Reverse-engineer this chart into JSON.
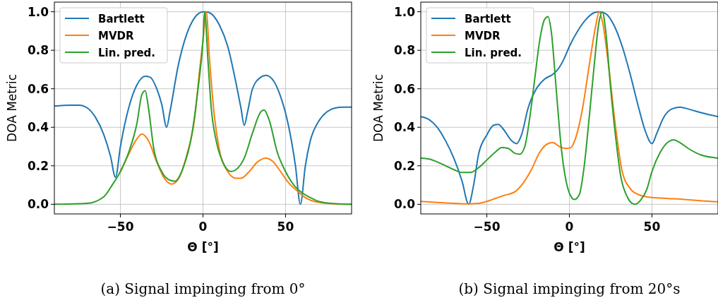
{
  "chart_data": [
    {
      "type": "line",
      "xlabel": "Θ [°]",
      "ylabel": "DOA Metric",
      "annotations": [
        "(a) Signal impinging from 0°"
      ],
      "xlim": [
        -90,
        90
      ],
      "ylim": [
        -0.05,
        1.05
      ],
      "xticks": [
        -50,
        0,
        50
      ],
      "yticks": [
        {
          "value": 0,
          "label": "0.0"
        },
        {
          "value": 0.2,
          "label": "0.2"
        },
        {
          "value": 0.4,
          "label": "0.4"
        },
        {
          "value": 0.6,
          "label": "0.6"
        },
        {
          "value": 0.8,
          "label": "0.8"
        },
        {
          "value": 1,
          "label": "1.0"
        }
      ],
      "grid": true,
      "legend": "top left",
      "series": [
        {
          "name": "Bartlett",
          "color": "#1f77b4",
          "x": [
            -90,
            -80,
            -75,
            -70,
            -65,
            -60,
            -56,
            -53,
            -50,
            -45,
            -40,
            -35,
            -32,
            -28,
            -25,
            -22,
            -20,
            -15,
            -10,
            -5,
            0,
            2,
            5,
            10,
            15,
            20,
            23,
            25,
            27,
            30,
            35,
            38,
            42,
            47,
            52,
            56,
            59,
            62,
            65,
            70,
            75,
            80,
            85,
            90
          ],
          "values": [
            0.51,
            0.515,
            0.515,
            0.5,
            0.45,
            0.36,
            0.25,
            0.14,
            0.3,
            0.5,
            0.62,
            0.665,
            0.66,
            0.6,
            0.52,
            0.4,
            0.48,
            0.72,
            0.88,
            0.97,
            1.0,
            1.0,
            0.99,
            0.93,
            0.82,
            0.63,
            0.5,
            0.41,
            0.48,
            0.6,
            0.66,
            0.67,
            0.65,
            0.56,
            0.4,
            0.2,
            0.0,
            0.2,
            0.33,
            0.43,
            0.48,
            0.5,
            0.505,
            0.505
          ]
        },
        {
          "name": "MVDR",
          "color": "#ff7f0e",
          "x": [
            -50,
            -45,
            -40,
            -37,
            -33,
            -28,
            -23,
            -19,
            -15,
            -10,
            -5,
            -2,
            0,
            2,
            4,
            7,
            10,
            15,
            20,
            23,
            28,
            33,
            38,
            42,
            47,
            52,
            57,
            62,
            70,
            80,
            90
          ],
          "values": [
            0.17,
            0.26,
            0.34,
            0.365,
            0.33,
            0.22,
            0.13,
            0.105,
            0.13,
            0.25,
            0.45,
            0.7,
            0.85,
            1.0,
            0.75,
            0.45,
            0.28,
            0.17,
            0.135,
            0.135,
            0.17,
            0.22,
            0.24,
            0.225,
            0.17,
            0.11,
            0.07,
            0.035,
            0.01,
            0.002,
            0
          ]
        },
        {
          "name": "Lin. pred.",
          "color": "#2ca02c",
          "x": [
            -90,
            -70,
            -60,
            -55,
            -50,
            -45,
            -40,
            -37,
            -35,
            -33,
            -30,
            -25,
            -20,
            -17,
            -12,
            -7,
            -3,
            0,
            1,
            3,
            5,
            8,
            12,
            17,
            20,
            25,
            30,
            35,
            37,
            40,
            45,
            50,
            55,
            60,
            65,
            70,
            80,
            90
          ],
          "values": [
            0,
            0.005,
            0.04,
            0.1,
            0.17,
            0.27,
            0.42,
            0.57,
            0.59,
            0.5,
            0.3,
            0.17,
            0.125,
            0.12,
            0.19,
            0.35,
            0.6,
            0.85,
            1.0,
            0.75,
            0.5,
            0.33,
            0.22,
            0.17,
            0.18,
            0.24,
            0.37,
            0.48,
            0.49,
            0.44,
            0.27,
            0.17,
            0.1,
            0.06,
            0.035,
            0.015,
            0.003,
            0
          ]
        }
      ]
    },
    {
      "type": "line",
      "xlabel": "Θ [°]",
      "ylabel": "DOA Metric",
      "annotations": [
        "(b) Signal impinging from 20°s"
      ],
      "xlim": [
        -90,
        90
      ],
      "ylim": [
        -0.05,
        1.05
      ],
      "xticks": [
        -50,
        0,
        50
      ],
      "yticks": [
        {
          "value": 0,
          "label": "0.0"
        },
        {
          "value": 0.2,
          "label": "0.2"
        },
        {
          "value": 0.4,
          "label": "0.4"
        },
        {
          "value": 0.6,
          "label": "0.6"
        },
        {
          "value": 0.8,
          "label": "0.8"
        },
        {
          "value": 1,
          "label": "1.0"
        }
      ],
      "grid": true,
      "legend": "top left",
      "series": [
        {
          "name": "Bartlett",
          "color": "#1f77b4",
          "x": [
            -90,
            -85,
            -80,
            -75,
            -70,
            -65,
            -61,
            -58,
            -55,
            -50,
            -46,
            -43,
            -40,
            -35,
            -32,
            -29,
            -25,
            -20,
            -15,
            -10,
            -7,
            -3,
            0,
            5,
            10,
            15,
            18,
            22,
            27,
            32,
            37,
            42,
            46,
            50,
            53,
            57,
            62,
            67,
            72,
            80,
            90
          ],
          "values": [
            0.455,
            0.44,
            0.4,
            0.33,
            0.24,
            0.12,
            0.0,
            0.1,
            0.26,
            0.36,
            0.41,
            0.415,
            0.39,
            0.33,
            0.315,
            0.36,
            0.5,
            0.6,
            0.65,
            0.675,
            0.7,
            0.76,
            0.82,
            0.9,
            0.96,
            0.995,
            1.0,
            0.99,
            0.93,
            0.82,
            0.67,
            0.5,
            0.38,
            0.315,
            0.37,
            0.45,
            0.495,
            0.505,
            0.495,
            0.475,
            0.455
          ]
        },
        {
          "name": "MVDR",
          "color": "#ff7f0e",
          "x": [
            -90,
            -80,
            -70,
            -62,
            -55,
            -50,
            -45,
            -40,
            -33,
            -28,
            -23,
            -18,
            -13,
            -10,
            -6,
            -2,
            1,
            4,
            8,
            12,
            16,
            18,
            20,
            24,
            28,
            32,
            37,
            42,
            50,
            60,
            70,
            80,
            90
          ],
          "values": [
            0.015,
            0.01,
            0.005,
            0.002,
            0.005,
            0.015,
            0.03,
            0.045,
            0.065,
            0.11,
            0.18,
            0.27,
            0.315,
            0.32,
            0.3,
            0.29,
            0.295,
            0.35,
            0.5,
            0.72,
            0.93,
            1.0,
            0.95,
            0.7,
            0.4,
            0.17,
            0.08,
            0.05,
            0.035,
            0.03,
            0.025,
            0.018,
            0.013
          ]
        },
        {
          "name": "Lin. pred.",
          "color": "#2ca02c",
          "x": [
            -90,
            -85,
            -80,
            -75,
            -70,
            -65,
            -60,
            -55,
            -50,
            -45,
            -41,
            -37,
            -33,
            -30,
            -27,
            -24,
            -21,
            -18,
            -15,
            -13,
            -11,
            -8,
            -5,
            -2,
            1,
            3,
            6,
            9,
            12,
            15,
            18,
            20,
            22,
            25,
            28,
            31,
            35,
            38,
            40,
            43,
            47,
            50,
            55,
            60,
            63,
            67,
            72,
            80,
            90
          ],
          "values": [
            0.24,
            0.235,
            0.22,
            0.2,
            0.18,
            0.165,
            0.165,
            0.19,
            0.23,
            0.27,
            0.295,
            0.29,
            0.265,
            0.26,
            0.3,
            0.45,
            0.65,
            0.85,
            0.96,
            0.975,
            0.9,
            0.6,
            0.3,
            0.12,
            0.04,
            0.025,
            0.05,
            0.2,
            0.45,
            0.72,
            0.95,
            1.0,
            0.9,
            0.6,
            0.35,
            0.15,
            0.04,
            0.005,
            0.0,
            0.02,
            0.08,
            0.17,
            0.27,
            0.325,
            0.335,
            0.32,
            0.29,
            0.255,
            0.24
          ]
        }
      ]
    }
  ]
}
